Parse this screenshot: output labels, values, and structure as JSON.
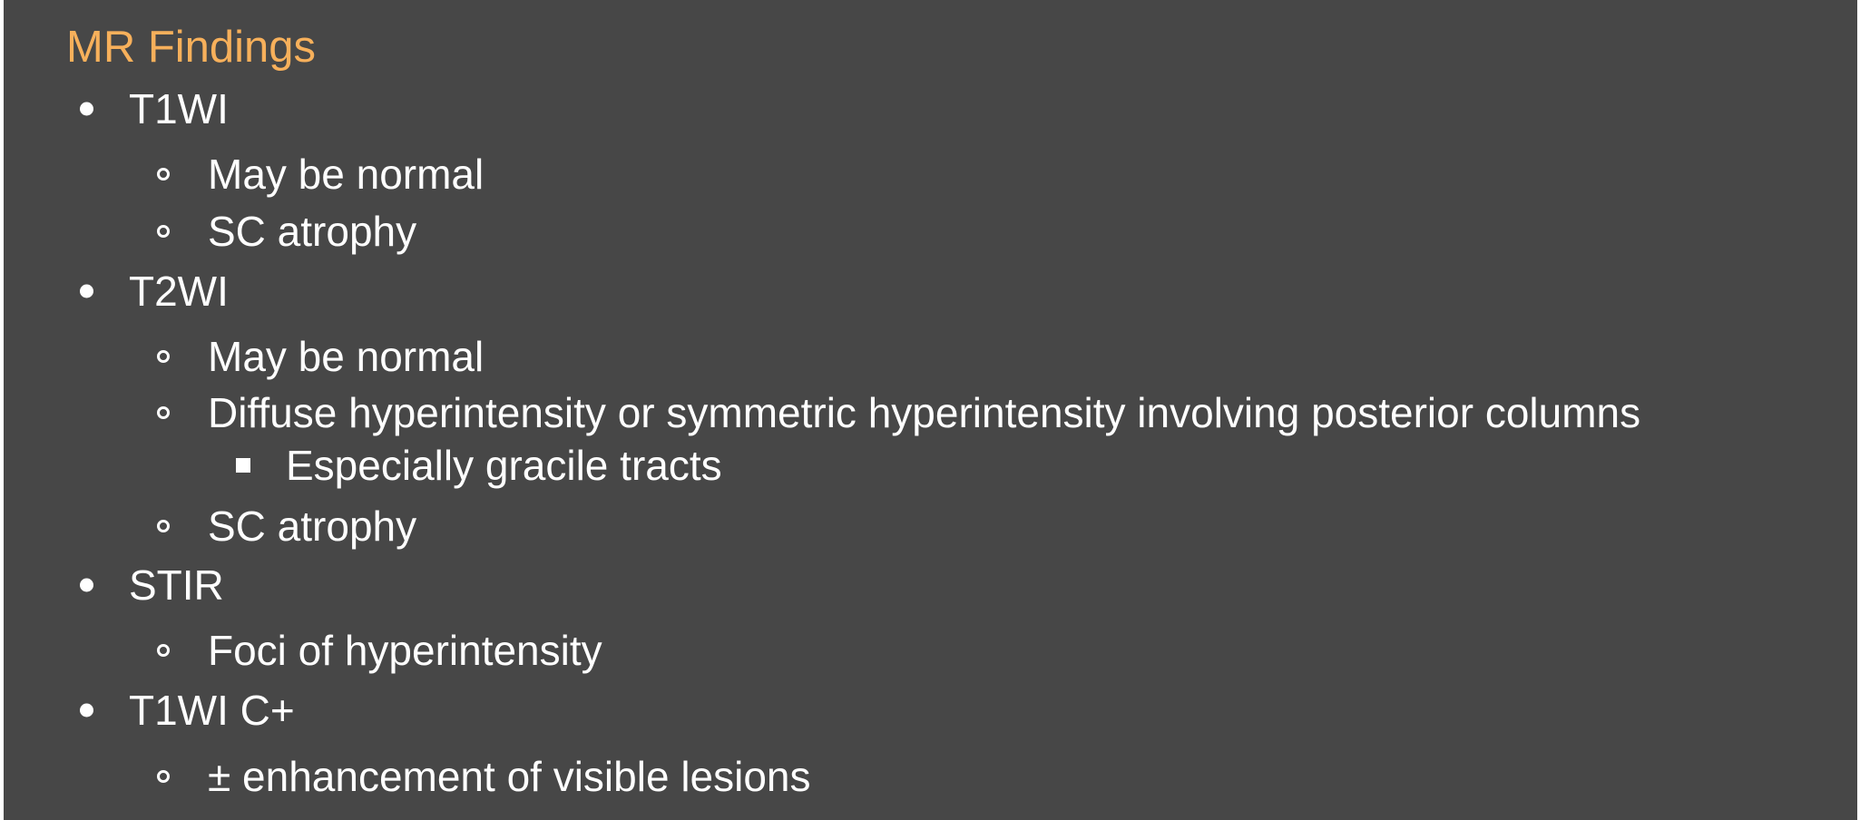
{
  "slide": {
    "title": "MR Findings",
    "items": [
      {
        "level": 1,
        "text": "T1WI"
      },
      {
        "level": 2,
        "text": "May be normal"
      },
      {
        "level": 2,
        "text": "SC atrophy"
      },
      {
        "level": 1,
        "text": "T2WI"
      },
      {
        "level": 2,
        "text": "May be normal"
      },
      {
        "level": 2,
        "text": "Diffuse hyperintensity or symmetric hyperintensity involving posterior columns"
      },
      {
        "level": 3,
        "text": "Especially gracile tracts"
      },
      {
        "level": 2,
        "text": "SC atrophy"
      },
      {
        "level": 1,
        "text": "STIR"
      },
      {
        "level": 2,
        "text": "Foci of hyperintensity"
      },
      {
        "level": 1,
        "text": "T1WI C+"
      },
      {
        "level": 2,
        "text": "± enhancement of visible lesions"
      }
    ]
  },
  "colors": {
    "background": "#474747",
    "title": "#f7b05b",
    "text": "#ffffff"
  }
}
